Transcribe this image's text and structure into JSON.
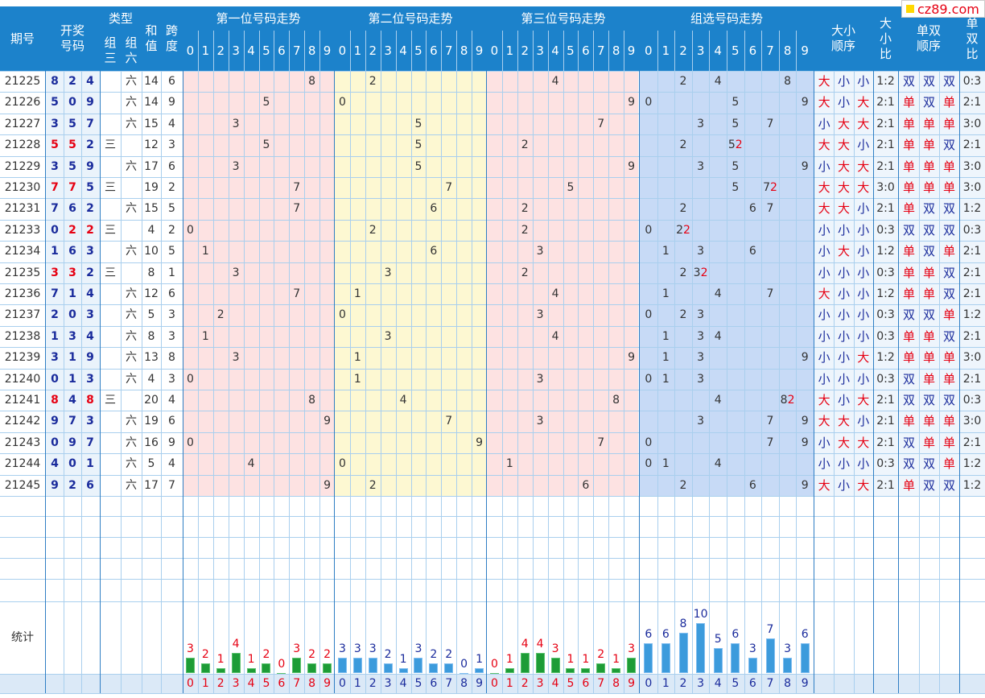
{
  "header": {
    "period": "期号",
    "draw": "开奖号码",
    "type": "类型",
    "type_zu3": "组三",
    "type_zu6": "组六",
    "sum": "和值",
    "span": "跨度",
    "pos1": "第一位号码走势",
    "pos2": "第二位号码走势",
    "pos3": "第三位号码走势",
    "group": "组选号码走势",
    "size_order": "大小顺序",
    "size_ratio": "大小比",
    "odd_order": "单双顺序",
    "odd_ratio": "单双比"
  },
  "digits": [
    "0",
    "1",
    "2",
    "3",
    "4",
    "5",
    "6",
    "7",
    "8",
    "9"
  ],
  "watermark": "cz89.com",
  "stats_label": "统计",
  "colors": {
    "header_bg": "#1c82cb",
    "pos1_bg": "#fde2e2",
    "pos2_bg": "#fdf8d2",
    "group_bg": "#c7daf6",
    "bar_green": "#1d9c36",
    "bar_blue": "#3c9bdc",
    "hit_red": "#e60012",
    "hit_blue": "#1a2b9c"
  },
  "chart_data": {
    "type": "table",
    "rows": [
      {
        "period": "21225",
        "nums": [
          8,
          2,
          4
        ],
        "type": "六",
        "sum": 14,
        "span": 6,
        "size": [
          "大",
          "小",
          "小"
        ],
        "size_ratio": "1:2",
        "odd": [
          "双",
          "双",
          "双"
        ],
        "odd_ratio": "0:3"
      },
      {
        "period": "21226",
        "nums": [
          5,
          0,
          9
        ],
        "type": "六",
        "sum": 14,
        "span": 9,
        "size": [
          "大",
          "小",
          "大"
        ],
        "size_ratio": "2:1",
        "odd": [
          "单",
          "双",
          "单"
        ],
        "odd_ratio": "2:1"
      },
      {
        "period": "21227",
        "nums": [
          3,
          5,
          7
        ],
        "type": "六",
        "sum": 15,
        "span": 4,
        "size": [
          "小",
          "大",
          "大"
        ],
        "size_ratio": "2:1",
        "odd": [
          "单",
          "单",
          "单"
        ],
        "odd_ratio": "3:0"
      },
      {
        "period": "21228",
        "nums": [
          5,
          5,
          2
        ],
        "type": "三",
        "sum": 12,
        "span": 3,
        "size": [
          "大",
          "大",
          "小"
        ],
        "size_ratio": "2:1",
        "odd": [
          "单",
          "单",
          "双"
        ],
        "odd_ratio": "2:1"
      },
      {
        "period": "21229",
        "nums": [
          3,
          5,
          9
        ],
        "type": "六",
        "sum": 17,
        "span": 6,
        "size": [
          "小",
          "大",
          "大"
        ],
        "size_ratio": "2:1",
        "odd": [
          "单",
          "单",
          "单"
        ],
        "odd_ratio": "3:0"
      },
      {
        "period": "21230",
        "nums": [
          7,
          7,
          5
        ],
        "type": "三",
        "sum": 19,
        "span": 2,
        "size": [
          "大",
          "大",
          "大"
        ],
        "size_ratio": "3:0",
        "odd": [
          "单",
          "单",
          "单"
        ],
        "odd_ratio": "3:0"
      },
      {
        "period": "21231",
        "nums": [
          7,
          6,
          2
        ],
        "type": "六",
        "sum": 15,
        "span": 5,
        "size": [
          "大",
          "大",
          "小"
        ],
        "size_ratio": "2:1",
        "odd": [
          "单",
          "双",
          "双"
        ],
        "odd_ratio": "1:2"
      },
      {
        "period": "21233",
        "nums": [
          0,
          2,
          2
        ],
        "type": "三",
        "sum": 4,
        "span": 2,
        "size": [
          "小",
          "小",
          "小"
        ],
        "size_ratio": "0:3",
        "odd": [
          "双",
          "双",
          "双"
        ],
        "odd_ratio": "0:3"
      },
      {
        "period": "21234",
        "nums": [
          1,
          6,
          3
        ],
        "type": "六",
        "sum": 10,
        "span": 5,
        "size": [
          "小",
          "大",
          "小"
        ],
        "size_ratio": "1:2",
        "odd": [
          "单",
          "双",
          "单"
        ],
        "odd_ratio": "2:1"
      },
      {
        "period": "21235",
        "nums": [
          3,
          3,
          2
        ],
        "type": "三",
        "sum": 8,
        "span": 1,
        "size": [
          "小",
          "小",
          "小"
        ],
        "size_ratio": "0:3",
        "odd": [
          "单",
          "单",
          "双"
        ],
        "odd_ratio": "2:1"
      },
      {
        "period": "21236",
        "nums": [
          7,
          1,
          4
        ],
        "type": "六",
        "sum": 12,
        "span": 6,
        "size": [
          "大",
          "小",
          "小"
        ],
        "size_ratio": "1:2",
        "odd": [
          "单",
          "单",
          "双"
        ],
        "odd_ratio": "2:1"
      },
      {
        "period": "21237",
        "nums": [
          2,
          0,
          3
        ],
        "type": "六",
        "sum": 5,
        "span": 3,
        "size": [
          "小",
          "小",
          "小"
        ],
        "size_ratio": "0:3",
        "odd": [
          "双",
          "双",
          "单"
        ],
        "odd_ratio": "1:2"
      },
      {
        "period": "21238",
        "nums": [
          1,
          3,
          4
        ],
        "type": "六",
        "sum": 8,
        "span": 3,
        "size": [
          "小",
          "小",
          "小"
        ],
        "size_ratio": "0:3",
        "odd": [
          "单",
          "单",
          "双"
        ],
        "odd_ratio": "2:1"
      },
      {
        "period": "21239",
        "nums": [
          3,
          1,
          9
        ],
        "type": "六",
        "sum": 13,
        "span": 8,
        "size": [
          "小",
          "小",
          "大"
        ],
        "size_ratio": "1:2",
        "odd": [
          "单",
          "单",
          "单"
        ],
        "odd_ratio": "3:0"
      },
      {
        "period": "21240",
        "nums": [
          0,
          1,
          3
        ],
        "type": "六",
        "sum": 4,
        "span": 3,
        "size": [
          "小",
          "小",
          "小"
        ],
        "size_ratio": "0:3",
        "odd": [
          "双",
          "单",
          "单"
        ],
        "odd_ratio": "2:1"
      },
      {
        "period": "21241",
        "nums": [
          8,
          4,
          8
        ],
        "type": "三",
        "sum": 20,
        "span": 4,
        "size": [
          "大",
          "小",
          "大"
        ],
        "size_ratio": "2:1",
        "odd": [
          "双",
          "双",
          "双"
        ],
        "odd_ratio": "0:3"
      },
      {
        "period": "21242",
        "nums": [
          9,
          7,
          3
        ],
        "type": "六",
        "sum": 19,
        "span": 6,
        "size": [
          "大",
          "大",
          "小"
        ],
        "size_ratio": "2:1",
        "odd": [
          "单",
          "单",
          "单"
        ],
        "odd_ratio": "3:0"
      },
      {
        "period": "21243",
        "nums": [
          0,
          9,
          7
        ],
        "type": "六",
        "sum": 16,
        "span": 9,
        "size": [
          "小",
          "大",
          "大"
        ],
        "size_ratio": "2:1",
        "odd": [
          "双",
          "单",
          "单"
        ],
        "odd_ratio": "2:1"
      },
      {
        "period": "21244",
        "nums": [
          4,
          0,
          1
        ],
        "type": "六",
        "sum": 5,
        "span": 4,
        "size": [
          "小",
          "小",
          "小"
        ],
        "size_ratio": "0:3",
        "odd": [
          "双",
          "双",
          "单"
        ],
        "odd_ratio": "1:2"
      },
      {
        "period": "21245",
        "nums": [
          9,
          2,
          6
        ],
        "type": "六",
        "sum": 17,
        "span": 7,
        "size": [
          "大",
          "小",
          "大"
        ],
        "size_ratio": "2:1",
        "odd": [
          "单",
          "双",
          "双"
        ],
        "odd_ratio": "1:2"
      }
    ],
    "stats": {
      "pos1": [
        3,
        2,
        1,
        4,
        1,
        2,
        0,
        3,
        2,
        2
      ],
      "pos2": [
        3,
        3,
        3,
        2,
        1,
        3,
        2,
        2,
        0,
        1
      ],
      "pos3": [
        0,
        1,
        4,
        4,
        3,
        1,
        1,
        2,
        1,
        3
      ],
      "group": [
        6,
        6,
        8,
        10,
        5,
        6,
        3,
        7,
        3,
        6
      ]
    }
  }
}
